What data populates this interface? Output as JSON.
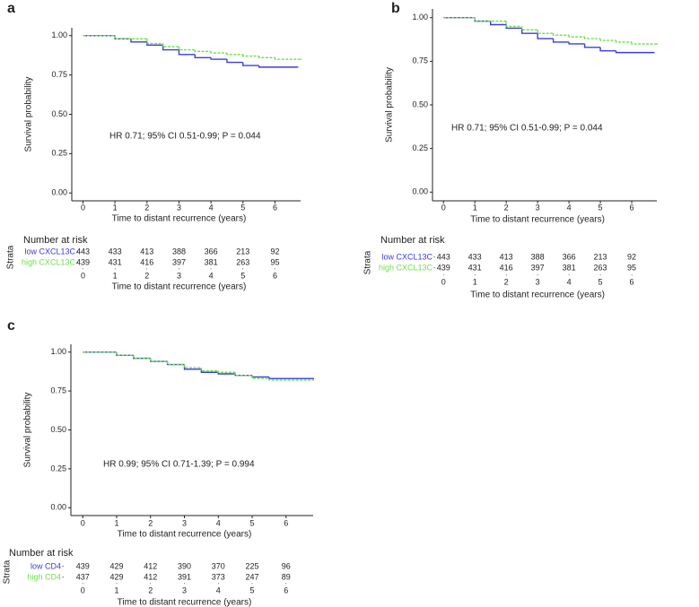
{
  "chart_data": [
    {
      "type": "line",
      "panel_label": "a",
      "annotation": "HR 0.71; 95% CI 0.51-0.99; P = 0.044",
      "x_label": "Time to distant recurrence (years)",
      "y_label": "Survival probability",
      "xlim": [
        -0.35,
        6.8
      ],
      "ylim": [
        -0.05,
        1.05
      ],
      "xticks": [
        0,
        1,
        2,
        3,
        4,
        5,
        6
      ],
      "yticks": [
        {
          "value": 0,
          "label": "0.00"
        },
        {
          "value": 0.25,
          "label": "0.25"
        },
        {
          "value": 0.5,
          "label": "0.50"
        },
        {
          "value": 0.75,
          "label": "0.75"
        },
        {
          "value": 1,
          "label": "1.00"
        }
      ],
      "series": [
        {
          "name": "low CXCL13C",
          "color": "#3c3cdc",
          "x": [
            0,
            1,
            1.5,
            2,
            2.5,
            3,
            3.5,
            4,
            4.5,
            5,
            5.5,
            6.7
          ],
          "values": [
            1,
            0.98,
            0.96,
            0.94,
            0.91,
            0.88,
            0.86,
            0.85,
            0.83,
            0.81,
            0.8,
            0.8
          ]
        },
        {
          "name": "high CXCL13C",
          "color": "#6ee04a",
          "x": [
            0,
            1,
            2,
            2.5,
            3,
            3.5,
            4,
            4.5,
            5,
            5.5,
            6,
            6.8
          ],
          "values": [
            1,
            0.98,
            0.95,
            0.93,
            0.91,
            0.9,
            0.89,
            0.88,
            0.87,
            0.86,
            0.85,
            0.85
          ]
        }
      ],
      "risk_table": {
        "title": "Number at risk",
        "strata_label": "Strata",
        "rows": [
          [
            443,
            433,
            413,
            388,
            366,
            213,
            92
          ],
          [
            439,
            431,
            416,
            397,
            381,
            263,
            95
          ]
        ]
      }
    },
    {
      "type": "line",
      "panel_label": "b",
      "annotation": "HR 0.71; 95% CI 0.51-0.99; P = 0.044",
      "x_label": "Time to distant recurrence (years)",
      "y_label": "Survival probability",
      "xlim": [
        -0.35,
        6.8
      ],
      "ylim": [
        -0.05,
        1.05
      ],
      "xticks": [
        0,
        1,
        2,
        3,
        4,
        5,
        6
      ],
      "yticks": [
        {
          "value": 0,
          "label": "0.00"
        },
        {
          "value": 0.25,
          "label": "0.25"
        },
        {
          "value": 0.5,
          "label": "0.50"
        },
        {
          "value": 0.75,
          "label": "0.75"
        },
        {
          "value": 1,
          "label": "1.00"
        }
      ],
      "series": [
        {
          "name": "low CXCL13C",
          "color": "#3c3cdc",
          "x": [
            0,
            1,
            1.5,
            2,
            2.5,
            3,
            3.5,
            4,
            4.5,
            5,
            5.5,
            6.7
          ],
          "values": [
            1,
            0.98,
            0.96,
            0.94,
            0.91,
            0.88,
            0.86,
            0.85,
            0.83,
            0.81,
            0.8,
            0.8
          ]
        },
        {
          "name": "high CXCL13C",
          "color": "#6ee04a",
          "x": [
            0,
            1,
            2,
            2.5,
            3,
            3.5,
            4,
            4.5,
            5,
            5.5,
            6,
            6.8
          ],
          "values": [
            1,
            0.98,
            0.95,
            0.93,
            0.91,
            0.9,
            0.89,
            0.88,
            0.87,
            0.86,
            0.85,
            0.85
          ]
        }
      ],
      "risk_table": {
        "title": "Number at risk",
        "strata_label": "Strata",
        "rows": [
          [
            443,
            433,
            413,
            388,
            366,
            213,
            92
          ],
          [
            439,
            431,
            416,
            397,
            381,
            263,
            95
          ]
        ]
      }
    },
    {
      "type": "line",
      "panel_label": "c",
      "annotation": "HR 0.99; 95% CI 0.71-1.39; P = 0.994",
      "x_label": "Time to distant recurrence (years)",
      "y_label": "Survival probability",
      "xlim": [
        -0.35,
        6.8
      ],
      "ylim": [
        -0.05,
        1.05
      ],
      "xticks": [
        0,
        1,
        2,
        3,
        4,
        5,
        6
      ],
      "yticks": [
        {
          "value": 0,
          "label": "0.00"
        },
        {
          "value": 0.25,
          "label": "0.25"
        },
        {
          "value": 0.5,
          "label": "0.50"
        },
        {
          "value": 0.75,
          "label": "0.75"
        },
        {
          "value": 1,
          "label": "1.00"
        }
      ],
      "series": [
        {
          "name": "low CD4",
          "color": "#3c3cdc",
          "x": [
            0,
            1,
            1.5,
            2,
            2.5,
            3,
            3.5,
            4,
            4.5,
            5,
            5.5,
            6.8
          ],
          "values": [
            1,
            0.98,
            0.96,
            0.94,
            0.92,
            0.89,
            0.87,
            0.86,
            0.85,
            0.84,
            0.83,
            0.83
          ]
        },
        {
          "name": "high CD4",
          "color": "#6ee04a",
          "x": [
            0,
            1,
            1.5,
            2,
            2.5,
            3,
            3.5,
            4,
            4.5,
            5,
            5.5,
            6.8
          ],
          "values": [
            1,
            0.98,
            0.96,
            0.94,
            0.92,
            0.9,
            0.88,
            0.87,
            0.85,
            0.83,
            0.82,
            0.82
          ]
        }
      ],
      "risk_table": {
        "title": "Number at risk",
        "strata_label": "Strata",
        "rows": [
          [
            439,
            429,
            412,
            390,
            370,
            225,
            96
          ],
          [
            437,
            429,
            412,
            391,
            373,
            247,
            89
          ]
        ]
      }
    }
  ]
}
